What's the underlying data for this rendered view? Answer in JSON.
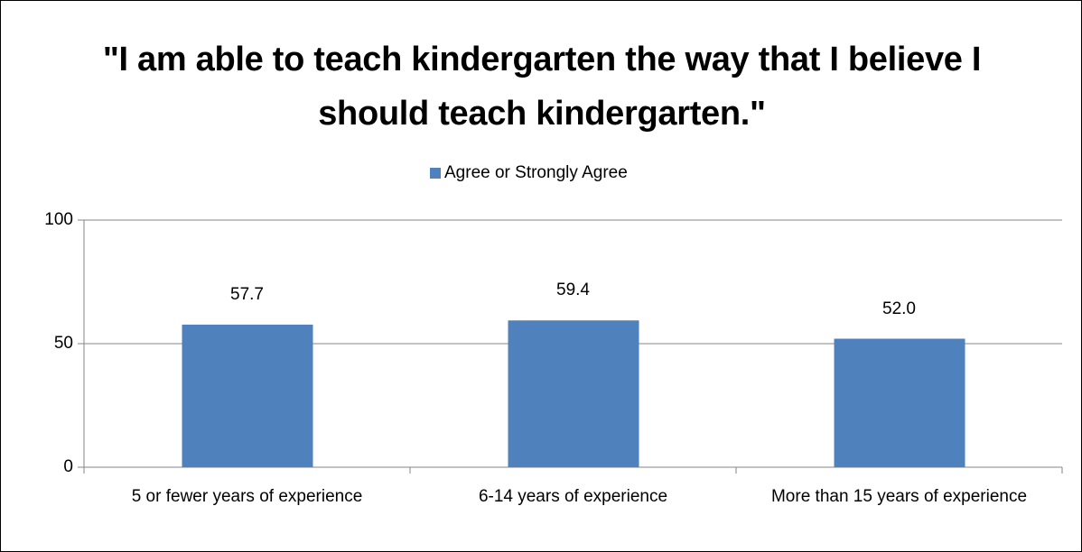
{
  "chart_data": {
    "type": "bar",
    "title": "\"I am able to teach kindergarten the way that I believe I should teach kindergarten.\"",
    "categories": [
      "5 or fewer years of experience",
      "6-14 years of experience",
      "More than 15 years of experience"
    ],
    "series": [
      {
        "name": "Agree or Strongly Agree",
        "color": "#4f81bd",
        "values": [
          57.7,
          59.4,
          52.0
        ],
        "value_labels": [
          "57.7",
          "59.4",
          "52.0"
        ]
      }
    ],
    "ylim": [
      0,
      100
    ],
    "yticks": [
      0,
      50,
      100
    ],
    "grid": true,
    "legend": "top"
  }
}
